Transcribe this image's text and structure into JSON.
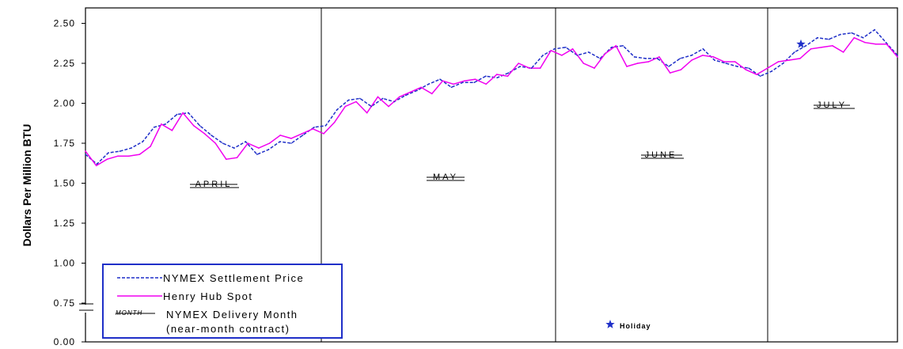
{
  "chart_data": {
    "type": "line",
    "ylabel": "Dollars Per Million BTU",
    "ylim": [
      0.0,
      2.5
    ],
    "yticks": [
      "0.00",
      "0.75",
      "1.00",
      "1.25",
      "1.50",
      "1.75",
      "2.00",
      "2.25",
      "2.50"
    ],
    "axis_break": "between 0.00 and 0.75",
    "grid": false,
    "months": [
      "APRIL",
      "MAY",
      "JUNE",
      "JULY"
    ],
    "series": [
      {
        "name": "NYMEX Settlement Price",
        "style": "dashed",
        "color": "#1f2fc8",
        "values": [
          1.68,
          1.62,
          1.69,
          1.7,
          1.72,
          1.76,
          1.85,
          1.87,
          1.93,
          1.94,
          1.86,
          1.8,
          1.75,
          1.72,
          1.76,
          1.68,
          1.71,
          1.76,
          1.75,
          1.8,
          1.85,
          1.86,
          1.96,
          2.02,
          2.03,
          1.98,
          2.03,
          2.01,
          2.05,
          2.08,
          2.12,
          2.15,
          2.1,
          2.13,
          2.13,
          2.17,
          2.16,
          2.19,
          2.23,
          2.22,
          2.3,
          2.34,
          2.35,
          2.3,
          2.32,
          2.28,
          2.35,
          2.36,
          2.29,
          2.28,
          2.28,
          2.23,
          2.28,
          2.3,
          2.34,
          2.27,
          2.25,
          2.23,
          2.22,
          2.17,
          2.2,
          2.25,
          2.32,
          2.36,
          2.41,
          2.4,
          2.43,
          2.44,
          2.41,
          2.46,
          2.38,
          2.3
        ]
      },
      {
        "name": "Henry Hub Spot",
        "style": "solid",
        "color": "#f000f0",
        "values": [
          1.7,
          1.61,
          1.65,
          1.67,
          1.67,
          1.68,
          1.73,
          1.87,
          1.83,
          1.94,
          1.86,
          1.81,
          1.75,
          1.65,
          1.66,
          1.75,
          1.72,
          1.75,
          1.8,
          1.78,
          1.81,
          1.84,
          1.81,
          1.88,
          1.98,
          2.01,
          1.94,
          2.04,
          1.98,
          2.04,
          2.07,
          2.1,
          2.06,
          2.14,
          2.12,
          2.14,
          2.15,
          2.12,
          2.18,
          2.17,
          2.25,
          2.22,
          2.22,
          2.33,
          2.3,
          2.34,
          2.25,
          2.22,
          2.31,
          2.36,
          2.23,
          2.25,
          2.26,
          2.29,
          2.19,
          2.21,
          2.27,
          2.3,
          2.29,
          2.26,
          2.26,
          2.21,
          2.18,
          2.22,
          2.26,
          2.27,
          2.28,
          2.34,
          2.35,
          2.36,
          2.32,
          2.41,
          2.38,
          2.37,
          2.37,
          2.29
        ]
      }
    ],
    "holiday_marker": {
      "label": "Holiday",
      "value": 2.37
    }
  },
  "legend": {
    "settlement": "NYMEX Settlement Price",
    "spot": "Henry Hub Spot",
    "month_sample": "MONTH",
    "delivery_line1": "NYMEX Delivery Month",
    "delivery_line2": "(near-month contract)",
    "holiday": "Holiday"
  },
  "colors": {
    "settlement": "#1f2fc8",
    "spot": "#f000f0",
    "legend_border": "#1f2fc8",
    "holiday_star": "#1f2fc8"
  }
}
